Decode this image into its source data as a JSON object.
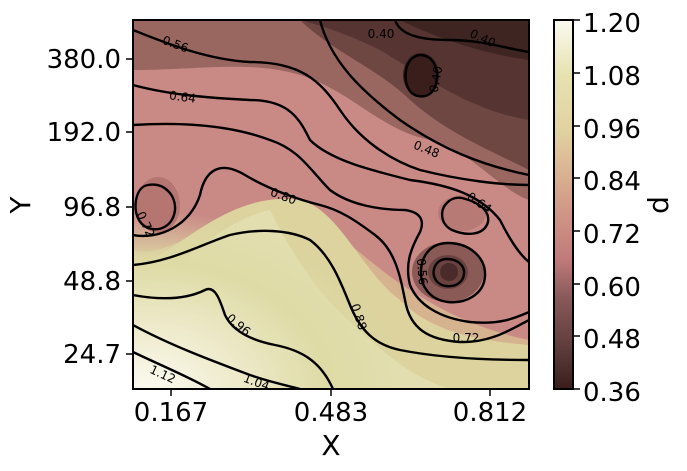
{
  "chart_data": {
    "type": "contour",
    "xlabel": "X",
    "ylabel": "Y",
    "x_ticks": [
      "0.167",
      "0.483",
      "0.812"
    ],
    "y_ticks": [
      "380.0",
      "192.0",
      "96.8",
      "48.8",
      "24.7"
    ],
    "y_scale": "log",
    "colorbar": {
      "label": "d",
      "ticks": [
        "1.20",
        "1.08",
        "0.96",
        "0.84",
        "0.72",
        "0.60",
        "0.48",
        "0.36"
      ],
      "range": [
        0.36,
        1.2
      ],
      "colors": [
        "#3a1e1c",
        "#5a3a38",
        "#8a5a5a",
        "#c07a7a",
        "#d4a08a",
        "#e2d2a0",
        "#e6e2b0",
        "#fbfaf0"
      ]
    },
    "contour_levels": [
      0.4,
      0.48,
      0.56,
      0.64,
      0.72,
      0.8,
      0.88,
      0.96,
      1.04,
      1.12
    ],
    "contour_labels": [
      "0.56",
      "0.40",
      "0.40",
      "0.40",
      "0.64",
      "0.48",
      "0.64",
      "0.80",
      "0.72",
      "0.56",
      "0.88",
      "0.96",
      "0.72",
      "1.12",
      "1.04"
    ]
  }
}
